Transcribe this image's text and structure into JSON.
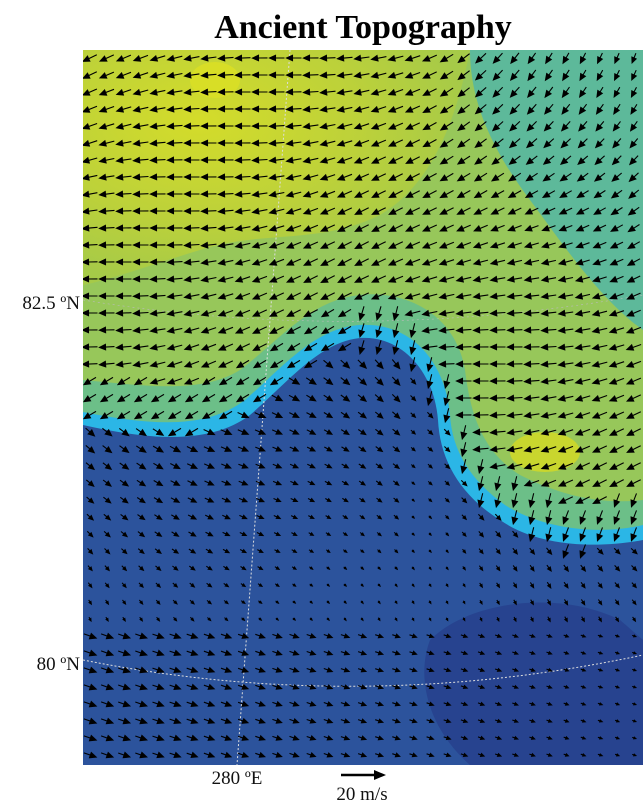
{
  "title": "Ancient Topography",
  "lat_labels": [
    "82.5 ºN",
    "80 ºN"
  ],
  "lon_labels": [
    "280 ºE"
  ],
  "scale_label": "20 m/s"
}
